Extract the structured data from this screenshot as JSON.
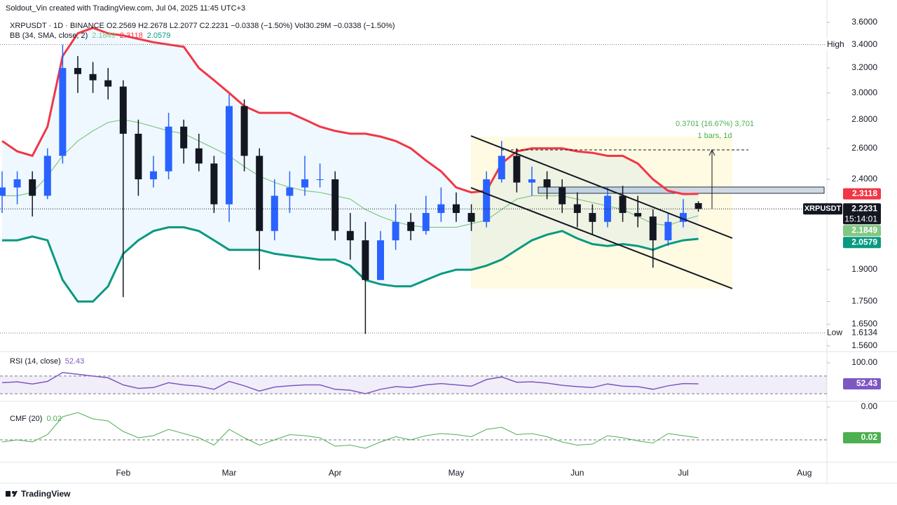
{
  "header": {
    "credit": "Soldout_Vin created with TradingView.com, Jul 04, 2025 11:45 UTC+3",
    "symbol_line": "XRPUSDT · 1D · BINANCE  O2.2569  H2.2678  L2.2077  C2.2231  −0.0338 (−1.50%)  Vol30.29M  −0.0338 (−1.50%)",
    "bb_label": "BB (34, SMA, close, 2)",
    "rsi_label": "RSI (14, close)",
    "cmf_label": "CMF (20)",
    "footer_logo": "TradingView"
  },
  "chart_data": {
    "type": "candlestick",
    "log_scale": true,
    "categories": [
      null,
      null,
      null,
      null,
      null,
      null,
      null,
      null,
      "Feb",
      null,
      null,
      null,
      null,
      null,
      null,
      "Mar",
      null,
      null,
      null,
      null,
      null,
      null,
      "Apr",
      null,
      null,
      null,
      null,
      null,
      null,
      null,
      "May",
      null,
      null,
      null,
      null,
      null,
      null,
      null,
      "Jun",
      null,
      null,
      null,
      null,
      null,
      null,
      "Jul",
      null,
      null,
      null,
      null,
      null,
      null,
      null,
      "Aug",
      null
    ],
    "open": [
      2.3,
      2.35,
      2.4,
      2.3,
      2.55,
      3.2,
      3.15,
      3.1,
      3.05,
      2.7,
      2.4,
      2.45,
      2.75,
      2.6,
      2.5,
      2.25,
      2.9,
      2.55,
      2.1,
      2.3,
      2.35,
      2.4,
      2.4,
      2.1,
      2.05,
      1.85,
      2.05,
      2.15,
      2.1,
      2.2,
      2.25,
      2.2,
      2.15,
      2.4,
      2.55,
      2.38,
      2.4,
      2.35,
      2.25,
      2.2,
      2.15,
      2.3,
      2.2,
      2.18,
      2.05,
      2.15,
      2.2569,
      null,
      null,
      null,
      null,
      null,
      null,
      null,
      null
    ],
    "high": [
      2.45,
      2.45,
      2.45,
      2.6,
      3.4,
      3.3,
      3.25,
      3.2,
      3.1,
      2.8,
      2.55,
      2.85,
      2.8,
      2.7,
      2.55,
      2.99,
      2.95,
      2.6,
      2.4,
      2.45,
      2.55,
      2.5,
      2.45,
      2.2,
      2.15,
      2.1,
      2.25,
      2.2,
      2.3,
      2.35,
      2.32,
      2.25,
      2.45,
      2.65,
      2.6,
      2.48,
      2.45,
      2.4,
      2.32,
      2.25,
      2.35,
      2.36,
      2.3,
      2.22,
      2.2,
      2.28,
      2.2678,
      null,
      null,
      null,
      null,
      null,
      null,
      null,
      null
    ],
    "low": [
      2.2,
      2.25,
      2.18,
      2.28,
      2.5,
      3.0,
      3.0,
      2.95,
      1.77,
      2.3,
      2.35,
      2.4,
      2.5,
      2.45,
      2.2,
      2.15,
      2.45,
      1.9,
      2.05,
      2.2,
      2.3,
      2.35,
      2.05,
      1.95,
      1.61,
      1.85,
      2.0,
      2.05,
      2.08,
      2.15,
      2.15,
      2.1,
      2.12,
      2.38,
      2.32,
      2.3,
      2.28,
      2.2,
      2.12,
      2.08,
      2.12,
      2.15,
      2.12,
      1.91,
      2.02,
      2.12,
      2.2077,
      null,
      null,
      null,
      null,
      null,
      null,
      null,
      null
    ],
    "close": [
      2.35,
      2.4,
      2.3,
      2.55,
      3.2,
      3.15,
      3.1,
      3.05,
      2.7,
      2.4,
      2.45,
      2.75,
      2.6,
      2.5,
      2.25,
      2.9,
      2.55,
      2.1,
      2.3,
      2.35,
      2.4,
      2.4,
      2.1,
      2.05,
      1.85,
      2.05,
      2.15,
      2.1,
      2.2,
      2.25,
      2.2,
      2.15,
      2.4,
      2.55,
      2.38,
      2.4,
      2.35,
      2.25,
      2.2,
      2.15,
      2.3,
      2.2,
      2.18,
      2.05,
      2.15,
      2.2,
      2.2231,
      null,
      null,
      null,
      null,
      null,
      null,
      null,
      null
    ],
    "up_color": "#2962ff",
    "down_color": "#131722",
    "ylim": [
      1.56,
      3.6
    ],
    "yticks": [
      {
        "value": 3.6,
        "label": "3.6000"
      },
      {
        "value": 3.2,
        "label": "3.2000"
      },
      {
        "value": 3.0,
        "label": "3.0000"
      },
      {
        "value": 2.8,
        "label": "2.8000"
      },
      {
        "value": 2.6,
        "label": "2.6000"
      },
      {
        "value": 2.4,
        "label": "2.4000"
      },
      {
        "value": 1.9,
        "label": "1.9000"
      },
      {
        "value": 1.75,
        "label": "1.7500"
      },
      {
        "value": 1.65,
        "label": "1.6500"
      },
      {
        "value": 1.56,
        "label": "1.5600"
      }
    ],
    "high_marker": {
      "label": "High",
      "value": {
        "value": 3.4,
        "label": "3.4000"
      }
    },
    "low_marker": {
      "label": "Low",
      "value": 1.6134
    },
    "symbol": "XRPUSDT",
    "countdown": "15:14:01",
    "bb_upper": {
      "color": "#f23645",
      "values": [
        2.65,
        2.58,
        2.55,
        2.75,
        3.3,
        3.5,
        3.55,
        3.5,
        3.48,
        3.45,
        3.42,
        3.4,
        3.38,
        3.2,
        3.1,
        3.0,
        2.9,
        2.85,
        2.85,
        2.85,
        2.8,
        2.75,
        2.72,
        2.7,
        2.7,
        2.68,
        2.65,
        2.6,
        2.52,
        2.45,
        2.35,
        2.32,
        2.33,
        2.5,
        2.58,
        2.6,
        2.6,
        2.6,
        2.58,
        2.57,
        2.55,
        2.55,
        2.5,
        2.4,
        2.33,
        2.31,
        2.3118,
        null,
        null,
        null,
        null,
        null,
        null,
        null,
        null
      ]
    },
    "bb_mid": {
      "color": "#81c784",
      "values": [
        2.3,
        2.3,
        2.32,
        2.42,
        2.55,
        2.65,
        2.72,
        2.78,
        2.8,
        2.78,
        2.75,
        2.72,
        2.7,
        2.65,
        2.6,
        2.55,
        2.48,
        2.42,
        2.38,
        2.35,
        2.33,
        2.32,
        2.3,
        2.28,
        2.22,
        2.18,
        2.15,
        2.13,
        2.12,
        2.12,
        2.12,
        2.14,
        2.16,
        2.22,
        2.28,
        2.3,
        2.3,
        2.3,
        2.28,
        2.26,
        2.24,
        2.22,
        2.18,
        2.14,
        2.13,
        2.16,
        2.1849,
        null,
        null,
        null,
        null,
        null,
        null,
        null,
        null
      ]
    },
    "bb_lower": {
      "color": "#089981",
      "values": [
        2.05,
        2.05,
        2.07,
        2.05,
        1.85,
        1.75,
        1.75,
        1.82,
        1.98,
        2.05,
        2.1,
        2.12,
        2.12,
        2.1,
        2.05,
        2.0,
        2.0,
        2.0,
        1.98,
        1.97,
        1.96,
        1.95,
        1.95,
        1.92,
        1.85,
        1.83,
        1.82,
        1.82,
        1.85,
        1.88,
        1.9,
        1.9,
        1.92,
        1.95,
        2.0,
        2.05,
        2.08,
        2.1,
        2.06,
        2.03,
        2.02,
        2.03,
        2.02,
        2.0,
        2.03,
        2.05,
        2.0579,
        null,
        null,
        null,
        null,
        null,
        null,
        null,
        null
      ]
    },
    "measure": {
      "text": "0.3701 (16.67%) 3,701",
      "sub": "1 bars, 1d"
    },
    "rsi": {
      "color": "#7e57c2",
      "ylim": [
        0,
        100
      ],
      "yticks": [
        {
          "value": 100,
          "label": "100.00"
        },
        {
          "value": 0,
          "label": "0.00"
        }
      ],
      "band": [
        30,
        70
      ],
      "values": [
        55,
        57,
        52,
        58,
        78,
        74,
        70,
        66,
        50,
        42,
        44,
        55,
        50,
        47,
        40,
        58,
        48,
        36,
        45,
        48,
        50,
        50,
        40,
        38,
        30,
        40,
        46,
        44,
        50,
        53,
        50,
        47,
        62,
        68,
        56,
        57,
        54,
        49,
        46,
        44,
        52,
        47,
        46,
        40,
        48,
        53,
        52.43,
        null,
        null,
        null,
        null,
        null,
        null,
        null,
        null
      ]
    },
    "cmf": {
      "color": "#4caf50",
      "ylim": [
        -0.4,
        0.4
      ],
      "zero": 0,
      "values": [
        -0.02,
        0,
        -0.02,
        0.05,
        0.22,
        0.26,
        0.2,
        0.18,
        0.08,
        0.02,
        0.04,
        0.1,
        0.06,
        0.02,
        -0.05,
        0.1,
        0.02,
        -0.05,
        0,
        0.05,
        0.04,
        0.02,
        -0.06,
        -0.05,
        -0.08,
        -0.02,
        0.03,
        0,
        0.04,
        0.06,
        0.05,
        0.03,
        0.1,
        0.12,
        0.05,
        0.06,
        0.03,
        -0.02,
        -0.05,
        -0.04,
        0.04,
        0.02,
        -0.01,
        -0.03,
        0.06,
        0.04,
        0.02,
        null,
        null,
        null,
        null,
        null,
        null,
        null,
        null
      ]
    }
  }
}
